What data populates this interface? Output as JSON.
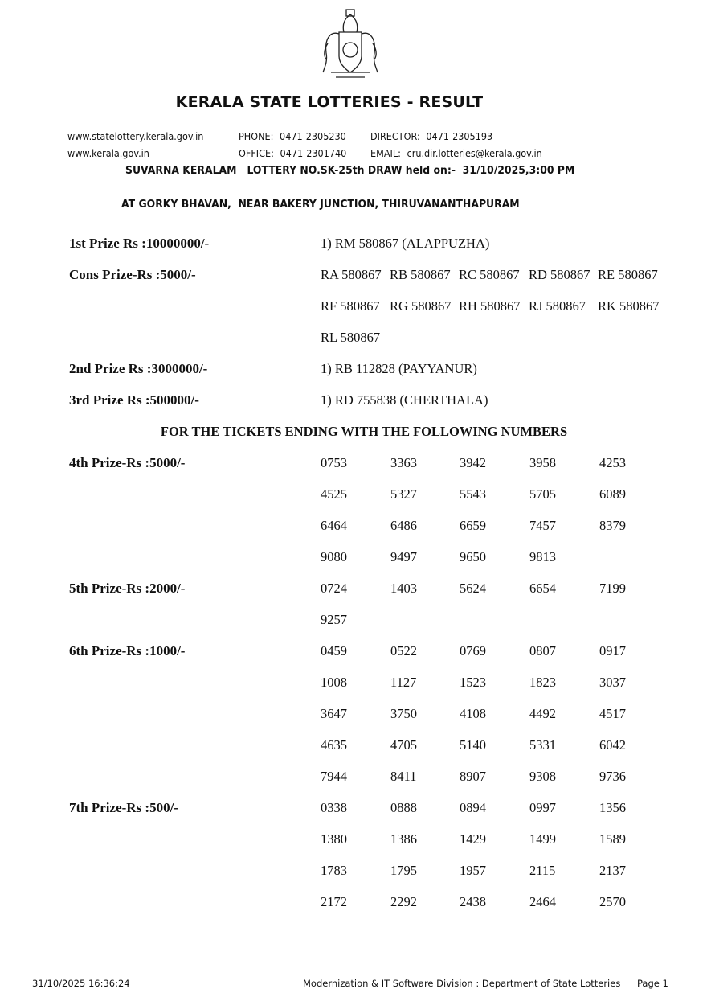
{
  "header": {
    "emblem": "kerala-state-emblem",
    "title": "KERALA STATE LOTTERIES - RESULT",
    "website1": "www.statelottery.kerala.gov.in",
    "website2": "www.kerala.gov.in",
    "phone": "PHONE:- 0471-2305230",
    "office": "OFFICE:- 0471-2301740",
    "director": "DIRECTOR:- 0471-2305193",
    "email": "EMAIL:- cru.dir.lotteries@kerala.gov.in",
    "draw_line": "SUVARNA KERALAM   LOTTERY NO.SK-25th DRAW held on:-  31/10/2025,3:00 PM",
    "venue": "AT GORKY BHAVAN,  NEAR BAKERY JUNCTION, THIRUVANANTHAPURAM"
  },
  "top_prizes": [
    {
      "label": "1st Prize Rs :10000000/-",
      "result": "1) RM 580867 (ALAPPUZHA)"
    },
    {
      "label": "Cons Prize-Rs :5000/-",
      "numbers": [
        "RA 580867",
        "RB 580867",
        "RC 580867",
        "RD 580867",
        "RE 580867",
        "RF 580867",
        "RG 580867",
        "RH 580867",
        "RJ 580867",
        "RK 580867",
        "RL 580867"
      ]
    },
    {
      "label": "2nd Prize Rs :3000000/-",
      "result": "1) RB 112828 (PAYYANUR)"
    },
    {
      "label": "3rd Prize Rs :500000/-",
      "result": "1) RD 755838 (CHERTHALA)"
    }
  ],
  "ending_heading": "FOR THE TICKETS ENDING WITH THE FOLLOWING NUMBERS",
  "ending_prizes": [
    {
      "label": "4th Prize-Rs :5000/-",
      "numbers": [
        "0753",
        "3363",
        "3942",
        "3958",
        "4253",
        "4525",
        "5327",
        "5543",
        "5705",
        "6089",
        "6464",
        "6486",
        "6659",
        "7457",
        "8379",
        "9080",
        "9497",
        "9650",
        "9813"
      ]
    },
    {
      "label": "5th Prize-Rs :2000/-",
      "numbers": [
        "0724",
        "1403",
        "5624",
        "6654",
        "7199",
        "9257"
      ]
    },
    {
      "label": "6th Prize-Rs :1000/-",
      "numbers": [
        "0459",
        "0522",
        "0769",
        "0807",
        "0917",
        "1008",
        "1127",
        "1523",
        "1823",
        "3037",
        "3647",
        "3750",
        "4108",
        "4492",
        "4517",
        "4635",
        "4705",
        "5140",
        "5331",
        "6042",
        "7944",
        "8411",
        "8907",
        "9308",
        "9736"
      ]
    },
    {
      "label": "7th Prize-Rs :500/-",
      "numbers": [
        "0338",
        "0888",
        "0894",
        "0997",
        "1356",
        "1380",
        "1386",
        "1429",
        "1499",
        "1589",
        "1783",
        "1795",
        "1957",
        "2115",
        "2137",
        "2172",
        "2292",
        "2438",
        "2464",
        "2570"
      ]
    }
  ],
  "footer": {
    "timestamp": "31/10/2025 16:36:24",
    "division": "Modernization & IT Software Division : Department of State Lotteries",
    "page": "Page 1"
  }
}
